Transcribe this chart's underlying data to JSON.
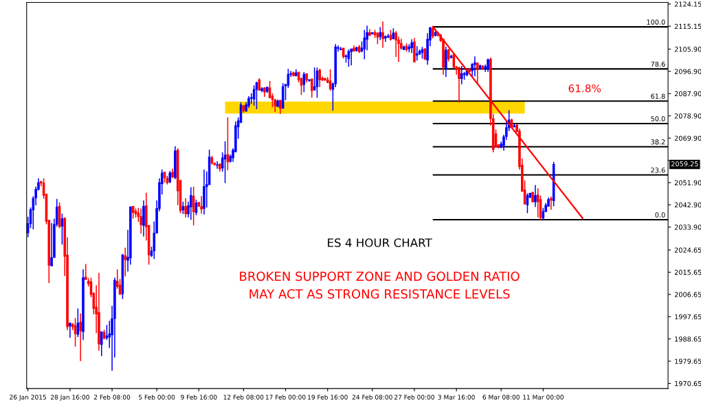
{
  "chart_data": {
    "type": "candlestick",
    "categories": [
      "26 Jan 2015",
      null,
      null,
      null,
      null,
      null,
      null,
      null,
      null,
      null,
      null,
      null,
      null,
      null,
      null,
      null,
      "28 Jan 16:00",
      null,
      null,
      null,
      null,
      null,
      null,
      null,
      null,
      null,
      null,
      null,
      null,
      null,
      null,
      null,
      "2 Feb 08:00",
      null,
      null,
      null,
      null,
      null,
      null,
      null,
      null,
      null,
      null,
      null,
      null,
      null,
      null,
      null,
      null,
      "5 Feb 00:00",
      null,
      null,
      null,
      null,
      null,
      null,
      null,
      null,
      null,
      null,
      null,
      null,
      null,
      null,
      null,
      "9 Feb 16:00",
      null,
      null,
      null,
      null,
      null,
      null,
      null,
      null,
      null,
      null,
      null,
      null,
      null,
      null,
      null,
      null,
      "12 Feb 08:00",
      null,
      null,
      null,
      null,
      null,
      null,
      null,
      null,
      null,
      null,
      null,
      null,
      null,
      null,
      null,
      "17 Feb 00:00",
      null,
      null,
      null,
      null,
      null,
      null,
      null,
      null,
      null,
      null,
      null,
      null,
      null,
      null,
      null,
      "19 Feb 16:00",
      null,
      null,
      null,
      null,
      null,
      null,
      null,
      null,
      null,
      null,
      null,
      null,
      null,
      null,
      null,
      null,
      "24 Feb 08:00",
      null,
      null,
      null,
      null,
      null,
      null,
      null,
      null,
      null,
      null,
      null,
      null,
      null,
      null,
      null,
      "27 Feb 00:00",
      null,
      null,
      null,
      null,
      null,
      null,
      null,
      null,
      null,
      null,
      null,
      null,
      null,
      null,
      null,
      "3 Mar 16:00",
      null,
      null,
      null,
      null,
      null,
      null,
      null,
      null,
      null,
      null,
      null,
      null,
      null,
      null,
      null,
      null,
      "6 Mar 08:00",
      null,
      null,
      null,
      null,
      null,
      null,
      null,
      null,
      null,
      null,
      null,
      null,
      null,
      null,
      null,
      "11 Mar 00:00",
      null,
      null,
      null,
      null,
      null,
      null,
      null,
      null,
      null,
      null,
      null,
      null,
      null,
      null,
      null,
      null,
      null,
      null,
      null,
      null,
      null,
      null,
      null,
      null,
      null,
      null,
      null,
      null,
      null,
      null,
      null,
      null,
      null,
      null,
      null,
      null,
      null,
      null,
      null,
      null,
      null,
      null,
      null,
      null,
      null,
      null,
      null
    ],
    "ohlc": [
      [
        2031.6,
        2038.1,
        2029.8,
        2035.3
      ],
      [
        2035.3,
        2041.8,
        2033.5,
        2040.9
      ],
      [
        2040.9,
        2046.4,
        2033.0,
        2045.5
      ],
      [
        2045.7,
        2050.3,
        2042.7,
        2049.2
      ],
      [
        2049.2,
        2053.6,
        2048.7,
        2051.9
      ],
      [
        2052.3,
        2052.6,
        2050.4,
        2051.8
      ],
      [
        2051.7,
        2053.6,
        2045.4,
        2046.8
      ],
      [
        2047.2,
        2047.2,
        2035.0,
        2036.2
      ],
      [
        2036.7,
        2036.7,
        2011.3,
        2018.5
      ],
      [
        2018.2,
        2035.6,
        2018.0,
        2021.5
      ],
      [
        2021.6,
        2037.3,
        2021.6,
        2035.0
      ],
      [
        2035.0,
        2045.3,
        2034.1,
        2042.0
      ],
      [
        2042.3,
        2043.9,
        2033.5,
        2034.1
      ],
      [
        2034.3,
        2039.3,
        2026.8,
        2037.3
      ],
      [
        2037.5,
        2037.8,
        2014.1,
        2022.1
      ],
      [
        2022.6,
        2029.8,
        1992.2,
        1993.6
      ],
      [
        1993.9,
        1995.3,
        1989.1,
        1995.1
      ],
      [
        1994.5,
        1995.1,
        1992.2,
        1993.6
      ],
      [
        1994.0,
        1997.1,
        1985.5,
        1990.8
      ],
      [
        1990.5,
        2001.0,
        1989.4,
        1995.1
      ],
      [
        1995.4,
        1999.0,
        1979.7,
        1991.9
      ],
      [
        1991.6,
        2016.8,
        1988.2,
        2013.4
      ],
      [
        2013.7,
        2019.0,
        2012.7,
        2012.7
      ],
      [
        2012.0,
        2013.2,
        2009.9,
        2011.0
      ],
      [
        2011.8,
        2013.4,
        2005.5,
        2006.6
      ],
      [
        2007.1,
        2007.6,
        1998.6,
        2001.0
      ],
      [
        2001.5,
        2010.4,
        1991.0,
        1998.8
      ],
      [
        1999.3,
        2015.4,
        1983.9,
        1986.6
      ],
      [
        1986.4,
        1991.5,
        1981.7,
        1991.5
      ],
      [
        1991.3,
        1992.4,
        1988.5,
        1988.9
      ],
      [
        1989.1,
        1994.3,
        1988.2,
        1989.9
      ],
      [
        1989.4,
        1996.0,
        1985.0,
        1990.7
      ],
      [
        1990.3,
        2002.1,
        1975.8,
        1996.8
      ],
      [
        1996.9,
        2013.4,
        1981.1,
        2012.4
      ],
      [
        2012.0,
        2016.8,
        2009.0,
        2009.9
      ],
      [
        2010.4,
        2012.9,
        2006.5,
        2006.8
      ],
      [
        2006.9,
        2023.1,
        2004.8,
        2022.6
      ],
      [
        2022.3,
        2025.6,
        2014.0,
        2020.7
      ],
      [
        2020.5,
        2032.8,
        2015.9,
        2021.7
      ],
      [
        2021.5,
        2042.3,
        2018.7,
        2042.0
      ],
      [
        2042.3,
        2042.3,
        2037.4,
        2039.8
      ],
      [
        2040.3,
        2041.5,
        2037.8,
        2039.3
      ],
      [
        2039.6,
        2041.7,
        2036.0,
        2038.2
      ],
      [
        2038.1,
        2041.4,
        2031.3,
        2034.9
      ],
      [
        2034.6,
        2044.7,
        2030.1,
        2042.3
      ],
      [
        2042.5,
        2047.8,
        2028.5,
        2034.0
      ],
      [
        2034.5,
        2034.8,
        2018.7,
        2022.7
      ],
      [
        2022.4,
        2026.0,
        2021.8,
        2024.2
      ],
      [
        2024.3,
        2036.2,
        2021.0,
        2031.4
      ],
      [
        2031.5,
        2044.7,
        2031.5,
        2041.4
      ],
      [
        2041.4,
        2053.6,
        2040.3,
        2051.9
      ],
      [
        2051.5,
        2057.2,
        2047.1,
        2055.8
      ],
      [
        2056.1,
        2056.1,
        2051.9,
        2053.9
      ],
      [
        2053.6,
        2054.7,
        2051.1,
        2051.9
      ],
      [
        2052.2,
        2056.6,
        2051.7,
        2055.8
      ],
      [
        2056.1,
        2057.5,
        2053.6,
        2054.3
      ],
      [
        2053.9,
        2066.6,
        2053.3,
        2064.7
      ],
      [
        2065.0,
        2065.8,
        2042.8,
        2048.6
      ],
      [
        2052.8,
        2052.8,
        2039.5,
        2040.6
      ],
      [
        2040.9,
        2044.2,
        2039.2,
        2042.2
      ],
      [
        2042.2,
        2045.6,
        2037.8,
        2039.3
      ],
      [
        2039.3,
        2044.2,
        2037.8,
        2042.5
      ],
      [
        2042.1,
        2050.0,
        2036.8,
        2046.7
      ],
      [
        2046.4,
        2050.3,
        2034.6,
        2040.1
      ],
      [
        2039.8,
        2045.0,
        2038.7,
        2043.6
      ],
      [
        2043.9,
        2043.9,
        2042.1,
        2042.3
      ],
      [
        2042.2,
        2046.4,
        2039.3,
        2041.2
      ],
      [
        2041.5,
        2057.2,
        2039.0,
        2050.3
      ],
      [
        2050.3,
        2056.4,
        2041.8,
        2051.1
      ],
      [
        2051.1,
        2065.2,
        2051.1,
        2062.2
      ],
      [
        2061.9,
        2062.7,
        2059.2,
        2059.8
      ],
      [
        2059.8,
        2060.0,
        2058.9,
        2059.1
      ],
      [
        2058.9,
        2060.5,
        2057.5,
        2059.1
      ],
      [
        2059.4,
        2059.7,
        2056.4,
        2057.5
      ],
      [
        2057.8,
        2064.1,
        2056.4,
        2061.9
      ],
      [
        2061.4,
        2068.6,
        2051.7,
        2063.0
      ],
      [
        2063.3,
        2078.3,
        2056.9,
        2060.3
      ],
      [
        2060.5,
        2063.3,
        2060.0,
        2062.5
      ],
      [
        2061.9,
        2065.8,
        2060.3,
        2065.0
      ],
      [
        2064.4,
        2076.6,
        2064.1,
        2074.9
      ],
      [
        2074.5,
        2078.3,
        2069.7,
        2076.9
      ],
      [
        2076.3,
        2084.4,
        2076.0,
        2083.3
      ],
      [
        2083.0,
        2083.3,
        2080.2,
        2081.0
      ],
      [
        2080.8,
        2084.4,
        2080.8,
        2083.3
      ],
      [
        2083.0,
        2086.9,
        2082.1,
        2086.0
      ],
      [
        2086.0,
        2088.0,
        2083.8,
        2086.3
      ],
      [
        2085.7,
        2091.3,
        2083.0,
        2089.6
      ],
      [
        2089.6,
        2092.7,
        2081.6,
        2092.3
      ],
      [
        2093.5,
        2094.1,
        2089.1,
        2089.3
      ],
      [
        2089.1,
        2090.5,
        2088.5,
        2089.9
      ],
      [
        2090.2,
        2090.5,
        2086.6,
        2088.5
      ],
      [
        2088.8,
        2090.7,
        2088.2,
        2090.5
      ],
      [
        2090.2,
        2093.0,
        2086.0,
        2086.3
      ],
      [
        2086.9,
        2088.0,
        2082.4,
        2085.5
      ],
      [
        2085.5,
        2085.5,
        2080.5,
        2083.0
      ],
      [
        2082.7,
        2085.5,
        2082.7,
        2084.9
      ],
      [
        2085.2,
        2085.2,
        2079.7,
        2081.9
      ],
      [
        2082.0,
        2092.1,
        2081.9,
        2090.7
      ],
      [
        2091.0,
        2091.8,
        2085.2,
        2091.6
      ],
      [
        2091.3,
        2097.9,
        2090.2,
        2095.7
      ],
      [
        2095.7,
        2097.1,
        2094.6,
        2096.0
      ],
      [
        2096.3,
        2096.8,
        2094.9,
        2095.2
      ],
      [
        2095.2,
        2097.7,
        2094.9,
        2096.3
      ],
      [
        2096.6,
        2096.6,
        2092.4,
        2093.5
      ],
      [
        2094.1,
        2094.3,
        2087.4,
        2091.3
      ],
      [
        2091.6,
        2096.6,
        2088.5,
        2095.7
      ],
      [
        2096.0,
        2096.0,
        2092.4,
        2093.5
      ],
      [
        2093.2,
        2093.8,
        2092.7,
        2093.5
      ],
      [
        2093.8,
        2093.8,
        2086.3,
        2089.1
      ],
      [
        2089.4,
        2098.5,
        2089.1,
        2090.7
      ],
      [
        2090.7,
        2098.5,
        2086.3,
        2097.1
      ],
      [
        2097.4,
        2097.9,
        2090.5,
        2093.5
      ],
      [
        2094.1,
        2094.9,
        2093.0,
        2093.5
      ],
      [
        2094.1,
        2094.1,
        2093.0,
        2093.5
      ],
      [
        2093.5,
        2094.6,
        2092.1,
        2092.4
      ],
      [
        2093.0,
        2097.7,
        2089.1,
        2089.9
      ],
      [
        2089.6,
        2092.4,
        2081.0,
        2091.9
      ],
      [
        2091.9,
        2107.9,
        2090.5,
        2106.8
      ],
      [
        2106.3,
        2107.4,
        2104.9,
        2106.5
      ],
      [
        2105.7,
        2106.8,
        2105.4,
        2106.0
      ],
      [
        2106.3,
        2106.3,
        2102.1,
        2102.9
      ],
      [
        2102.9,
        2103.8,
        2100.4,
        2103.2
      ],
      [
        2102.1,
        2105.7,
        2098.8,
        2104.9
      ],
      [
        2104.9,
        2106.0,
        2099.3,
        2106.0
      ],
      [
        2106.3,
        2107.4,
        2104.9,
        2105.1
      ],
      [
        2105.4,
        2106.8,
        2104.9,
        2106.5
      ],
      [
        2106.8,
        2107.6,
        2104.3,
        2104.9
      ],
      [
        2105.1,
        2109.0,
        2104.6,
        2106.3
      ],
      [
        2106.0,
        2113.7,
        2101.8,
        2110.4
      ],
      [
        2109.9,
        2115.4,
        2105.4,
        2112.6
      ],
      [
        2112.6,
        2114.0,
        2111.2,
        2111.5
      ],
      [
        2112.1,
        2112.6,
        2111.8,
        2112.6
      ],
      [
        2112.6,
        2113.7,
        2110.4,
        2111.8
      ],
      [
        2112.4,
        2112.6,
        2107.9,
        2110.7
      ],
      [
        2111.0,
        2114.8,
        2109.6,
        2112.6
      ],
      [
        2112.6,
        2117.1,
        2106.5,
        2110.1
      ],
      [
        2110.4,
        2111.5,
        2108.8,
        2111.0
      ],
      [
        2110.7,
        2112.1,
        2110.4,
        2111.2
      ],
      [
        2111.5,
        2113.7,
        2109.3,
        2109.9
      ],
      [
        2110.1,
        2114.3,
        2109.9,
        2112.4
      ],
      [
        2112.4,
        2113.2,
        2102.7,
        2109.6
      ],
      [
        2109.6,
        2111.0,
        2100.7,
        2108.2
      ],
      [
        2108.2,
        2110.1,
        2105.7,
        2106.3
      ],
      [
        2105.7,
        2107.4,
        2105.7,
        2106.8
      ],
      [
        2107.1,
        2108.2,
        2104.9,
        2105.7
      ],
      [
        2106.0,
        2107.9,
        2104.6,
        2106.8
      ],
      [
        2106.5,
        2109.9,
        2104.3,
        2108.5
      ],
      [
        2108.8,
        2110.4,
        2100.7,
        2100.7
      ],
      [
        2103.5,
        2107.1,
        2101.3,
        2104.0
      ],
      [
        2104.0,
        2105.7,
        2103.5,
        2105.1
      ],
      [
        2104.6,
        2106.8,
        2102.1,
        2105.7
      ],
      [
        2106.0,
        2106.3,
        2101.8,
        2101.8
      ],
      [
        2101.5,
        2112.4,
        2099.6,
        2109.9
      ],
      [
        2109.6,
        2114.8,
        2107.1,
        2114.6
      ],
      [
        2114.3,
        2115.0,
        2110.2,
        2111.2
      ],
      [
        2111.5,
        2113.2,
        2111.0,
        2112.6
      ],
      [
        2112.4,
        2112.9,
        2110.9,
        2111.5
      ],
      [
        2111.5,
        2112.0,
        2108.8,
        2109.4
      ],
      [
        2109.9,
        2109.9,
        2095.5,
        2098.6
      ],
      [
        2098.1,
        2106.9,
        2094.7,
        2105.5
      ],
      [
        2105.7,
        2106.0,
        2100.9,
        2102.0
      ],
      [
        2102.5,
        2103.6,
        2102.1,
        2103.0
      ],
      [
        2103.7,
        2103.9,
        2098.4,
        2098.6
      ],
      [
        2098.6,
        2099.1,
        2095.6,
        2097.9
      ],
      [
        2098.4,
        2098.8,
        2084.3,
        2094.0
      ],
      [
        2094.0,
        2099.1,
        2091.7,
        2096.0
      ],
      [
        2095.6,
        2096.7,
        2093.5,
        2096.0
      ],
      [
        2095.5,
        2097.9,
        2094.9,
        2097.4
      ],
      [
        2097.9,
        2098.1,
        2096.6,
        2096.9
      ],
      [
        2097.2,
        2100.2,
        2094.9,
        2099.7
      ],
      [
        2099.7,
        2102.9,
        2094.9,
        2100.4
      ],
      [
        2100.2,
        2100.6,
        2092.1,
        2097.7
      ],
      [
        2097.9,
        2099.7,
        2097.7,
        2099.2
      ],
      [
        2099.1,
        2099.3,
        2097.7,
        2097.9
      ],
      [
        2098.0,
        2099.7,
        2096.7,
        2098.8
      ],
      [
        2097.9,
        2102.1,
        2096.7,
        2101.6
      ],
      [
        2101.8,
        2102.5,
        2075.0,
        2077.8
      ],
      [
        2077.7,
        2079.6,
        2064.2,
        2065.3
      ],
      [
        2071.6,
        2073.4,
        2066.3,
        2066.5
      ],
      [
        2067.2,
        2067.2,
        2065.8,
        2066.1
      ],
      [
        2066.3,
        2068.5,
        2065.8,
        2067.5
      ],
      [
        2067.0,
        2071.3,
        2064.8,
        2070.4
      ],
      [
        2070.6,
        2077.2,
        2069.2,
        2074.1
      ],
      [
        2074.1,
        2081.2,
        2072.7,
        2077.2
      ],
      [
        2077.3,
        2077.8,
        2073.9,
        2074.1
      ],
      [
        2074.4,
        2075.7,
        2074.4,
        2074.9
      ],
      [
        2075.1,
        2075.5,
        2072.5,
        2072.5
      ],
      [
        2072.7,
        2073.8,
        2057.2,
        2058.4
      ],
      [
        2058.9,
        2061.6,
        2048.3,
        2048.4
      ],
      [
        2048.9,
        2052.8,
        2043.2,
        2043.2
      ],
      [
        2042.9,
        2047.6,
        2039.5,
        2046.7
      ],
      [
        2045.9,
        2047.8,
        2045.9,
        2047.6
      ],
      [
        2048.0,
        2048.0,
        2043.9,
        2044.1
      ],
      [
        2044.1,
        2050.9,
        2042.0,
        2046.7
      ],
      [
        2046.9,
        2049.6,
        2037.8,
        2044.1
      ],
      [
        2045.0,
        2046.6,
        2036.9,
        2037.8
      ],
      [
        2037.6,
        2041.7,
        2036.9,
        2040.2
      ],
      [
        2040.2,
        2043.6,
        2040.2,
        2042.7
      ],
      [
        2042.3,
        2045.9,
        2042.3,
        2045.0
      ],
      [
        2045.4,
        2046.3,
        2040.9,
        2044.8
      ],
      [
        2044.6,
        2060.3,
        2042.3,
        2059.25
      ],
      null,
      null,
      null,
      null,
      null,
      null,
      null,
      null,
      null,
      null,
      null,
      null,
      null,
      null,
      null,
      null,
      null,
      null,
      null,
      null,
      null,
      null,
      null,
      null,
      null,
      null,
      null,
      null,
      null,
      null,
      null,
      null,
      null,
      null,
      null,
      null,
      null,
      null,
      null,
      null,
      null,
      null,
      null
    ],
    "series": [
      {
        "type": "line",
        "color": "#ff0000",
        "values": [
          null,
          null,
          null,
          null,
          null,
          null,
          null,
          null,
          null,
          null,
          null,
          null,
          null,
          null,
          null,
          null,
          null,
          null,
          null,
          null,
          null,
          null,
          null,
          null,
          null,
          null,
          null,
          null,
          null,
          null,
          null,
          null,
          null,
          null,
          null,
          null,
          null,
          null,
          null,
          null,
          null,
          null,
          null,
          null,
          null,
          null,
          null,
          null,
          null,
          null,
          null,
          null,
          null,
          null,
          null,
          null,
          null,
          null,
          null,
          null,
          null,
          null,
          null,
          null,
          null,
          null,
          null,
          null,
          null,
          null,
          null,
          null,
          null,
          null,
          null,
          null,
          null,
          null,
          null,
          null,
          null,
          null,
          null,
          null,
          null,
          null,
          null,
          null,
          null,
          null,
          null,
          null,
          null,
          null,
          null,
          null,
          null,
          null,
          null,
          null,
          null,
          null,
          null,
          null,
          null,
          null,
          null,
          null,
          null,
          null,
          null,
          null,
          null,
          null,
          null,
          null,
          null,
          null,
          null,
          null,
          null,
          null,
          null,
          null,
          null,
          null,
          null,
          null,
          null,
          null,
          null,
          null,
          null,
          null,
          null,
          null,
          null,
          null,
          null,
          null,
          null,
          null,
          null,
          null,
          null,
          null,
          null,
          null,
          null,
          null,
          null,
          null,
          null,
          null,
          2115.0,
          null,
          null,
          null,
          null,
          null,
          null,
          null,
          null,
          null,
          null,
          null,
          null,
          null,
          null,
          null,
          null,
          null,
          null,
          null,
          null,
          null,
          null,
          null,
          null,
          null,
          null,
          null,
          null,
          null,
          null,
          null,
          null,
          null,
          null,
          null,
          null,
          null,
          null,
          null,
          null,
          null,
          null,
          null,
          null,
          null,
          null,
          null,
          null,
          null,
          null,
          null,
          null,
          null,
          null,
          null,
          null,
          2037.5,
          null,
          null,
          null,
          null,
          null,
          null,
          null,
          null,
          null,
          null,
          null,
          null,
          null,
          null,
          null,
          null,
          null,
          null,
          null,
          null,
          null,
          null,
          null,
          null,
          null,
          null,
          null,
          null,
          null,
          null,
          null,
          null
        ]
      }
    ],
    "ylim": [
      1968.6,
      2124.8
    ],
    "yticks": [
      2124.15,
      2115.15,
      {
        "value": 2105.9,
        "label": "2105.90"
      },
      {
        "value": 2096.9,
        "label": "2096.90"
      },
      {
        "value": 2087.9,
        "label": "2087.90"
      },
      {
        "value": 2078.9,
        "label": "2078.90"
      },
      {
        "value": 2069.9,
        "label": "2069.90"
      },
      {
        "value": 2060.9,
        "label": null
      },
      {
        "value": 2051.9,
        "label": "2051.90"
      },
      {
        "value": 2042.9,
        "label": "2042.90"
      },
      {
        "value": 2033.9,
        "label": "2033.90"
      },
      2024.65,
      2015.65,
      2006.65,
      1997.65,
      1988.65,
      1979.65,
      1970.65
    ],
    "ref_lines": [
      {
        "axis": "y",
        "value": 2114.9,
        "color": "#000000"
      },
      {
        "axis": "y",
        "value": 2097.9,
        "color": "#000000"
      },
      {
        "axis": "y",
        "value": 2084.9,
        "color": "#000000"
      },
      {
        "axis": "y",
        "value": 2075.8,
        "color": "#000000"
      },
      {
        "axis": "y",
        "value": 2066.4,
        "color": "#000000"
      },
      {
        "axis": "y",
        "value": 2055.0,
        "color": "#000000"
      },
      {
        "axis": "y",
        "value": 2036.9,
        "color": "#000000"
      }
    ],
    "bands": [
      {
        "axis": "y",
        "from": 2079.8,
        "to": 2084.7,
        "color": "#ffd700"
      }
    ],
    "annotations": [
      "61.8%",
      "ES 4 HOUR CHART",
      "BROKEN SUPPORT ZONE AND GOLDEN RATIO\nMAY ACT AS STRONG RESISTANCE LEVELS",
      "2059.25",
      "100.0",
      "78.6",
      "61.8",
      "50.0",
      "38.2",
      "23.6",
      "0.0"
    ],
    "grid": false,
    "legend": false
  }
}
